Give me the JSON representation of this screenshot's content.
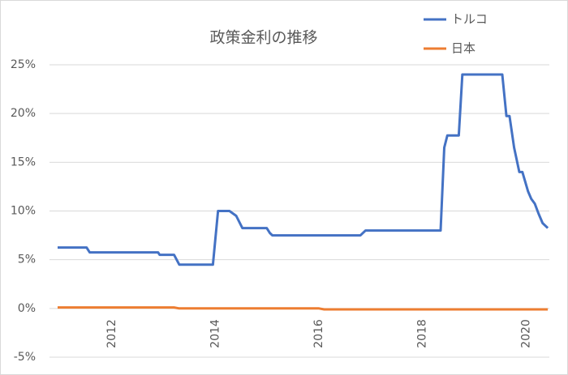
{
  "chart_data": {
    "type": "line",
    "title": "政策金利の推移",
    "xlim": [
      2010.95,
      2020.45
    ],
    "xticks": [
      2012,
      2014,
      2016,
      2018,
      2020
    ],
    "ylim": [
      -5,
      25
    ],
    "yticks": [
      {
        "value": -5,
        "label": "-5%"
      },
      {
        "value": 0,
        "label": "0%"
      },
      {
        "value": 5,
        "label": "5%"
      },
      {
        "value": 10,
        "label": "10%"
      },
      {
        "value": 15,
        "label": "15%"
      },
      {
        "value": 20,
        "label": "20%"
      },
      {
        "value": 25,
        "label": "25%"
      }
    ],
    "grid": true,
    "legend": "top-right",
    "series": [
      {
        "name": "トルコ",
        "color": "#4472c4",
        "x": [
          2010.95,
          2011.51,
          2011.57,
          2012.89,
          2012.92,
          2013.2,
          2013.3,
          2013.95,
          2014.05,
          2014.27,
          2014.4,
          2014.52,
          2014.99,
          2015.05,
          2015.1,
          2016.8,
          2016.9,
          2018.35,
          2018.42,
          2018.48,
          2018.7,
          2018.77,
          2019.54,
          2019.62,
          2019.68,
          2019.77,
          2019.87,
          2019.93,
          2020.04,
          2020.1,
          2020.17,
          2020.24,
          2020.32,
          2020.42
        ],
        "values": [
          6.25,
          6.25,
          5.75,
          5.75,
          5.5,
          5.5,
          4.5,
          4.5,
          10,
          10,
          9.5,
          8.25,
          8.25,
          7.75,
          7.5,
          7.5,
          8,
          8,
          16.5,
          17.75,
          17.75,
          24,
          24,
          19.75,
          19.75,
          16.5,
          14,
          14,
          12,
          11.25,
          10.75,
          9.75,
          8.75,
          8.25
        ]
      },
      {
        "name": "日本",
        "color": "#ed7d31",
        "x": [
          2010.95,
          2013.2,
          2013.3,
          2016.0,
          2016.1,
          2020.42
        ],
        "values": [
          0.1,
          0.1,
          0,
          0,
          -0.1,
          -0.1
        ]
      }
    ]
  }
}
